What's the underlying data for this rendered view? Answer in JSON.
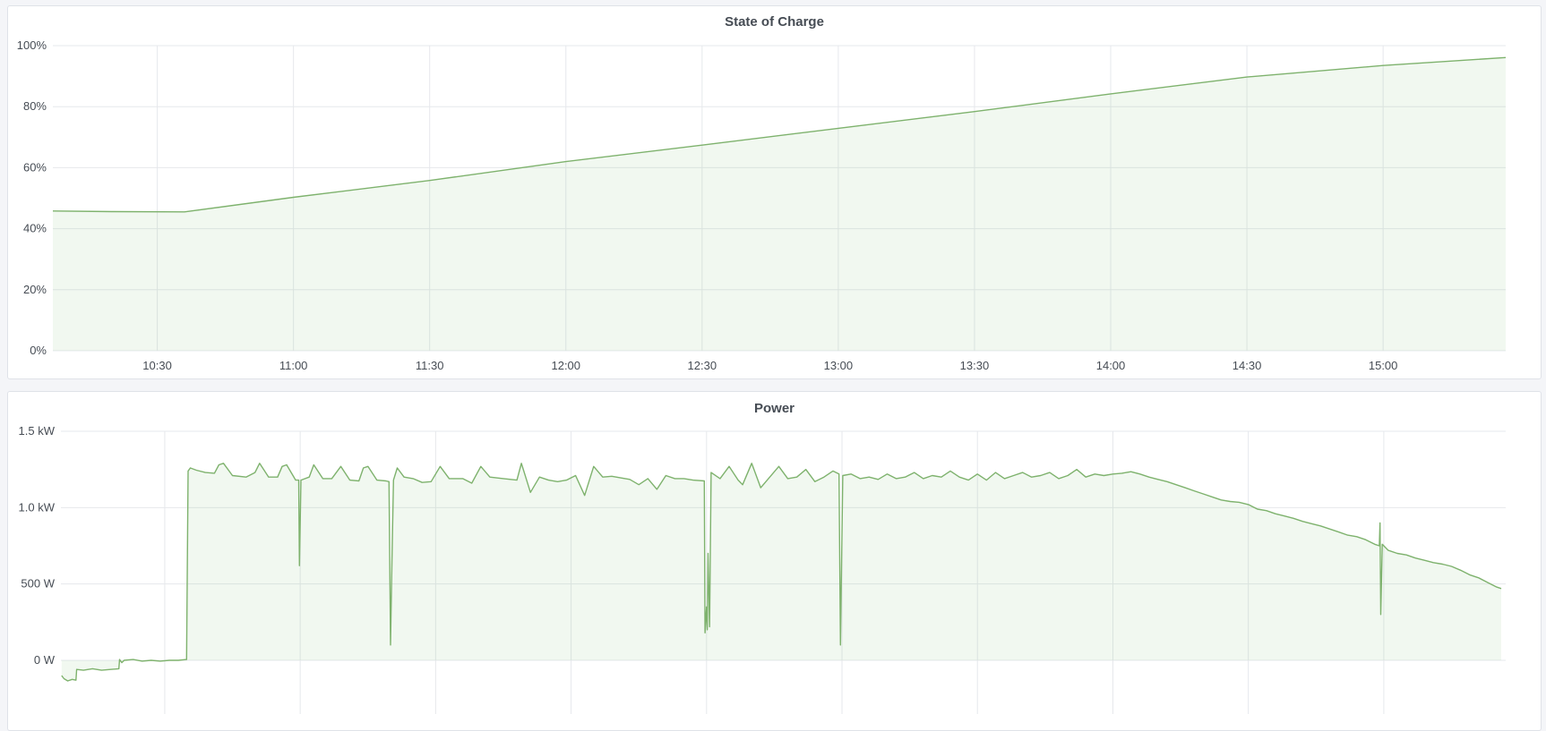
{
  "colors": {
    "line": "#7eb26d",
    "fill": "#73bf69",
    "grid": "#e6e8ec",
    "text": "#464c54"
  },
  "chart_data": [
    {
      "type": "area",
      "title": "State of Charge",
      "x_range": [
        "10:07:00",
        "15:27:00"
      ],
      "x_ticks": [
        "10:30",
        "11:00",
        "11:30",
        "12:00",
        "12:30",
        "13:00",
        "13:30",
        "14:00",
        "14:30",
        "15:00"
      ],
      "ylim": [
        0,
        100
      ],
      "y_ticks": [
        0,
        20,
        40,
        60,
        80,
        100
      ],
      "y_tick_labels": [
        "0%",
        "20%",
        "40%",
        "60%",
        "80%",
        "100%"
      ],
      "grid": true,
      "series": [
        {
          "points": [
            [
              "10:07:00",
              45.8
            ],
            [
              "10:20:00",
              45.6
            ],
            [
              "10:36:00",
              45.5
            ],
            [
              "11:00:00",
              50.3
            ],
            [
              "11:30:00",
              55.8
            ],
            [
              "12:00:00",
              62.0
            ],
            [
              "12:30:00",
              67.4
            ],
            [
              "13:00:00",
              72.9
            ],
            [
              "13:30:00",
              78.4
            ],
            [
              "14:00:00",
              84.2
            ],
            [
              "14:30:00",
              89.7
            ],
            [
              "15:00:00",
              93.5
            ],
            [
              "15:27:00",
              96.1
            ]
          ]
        }
      ]
    },
    {
      "type": "area",
      "title": "Power",
      "x_range": [
        "10:07:00",
        "15:27:00"
      ],
      "x_ticks": [
        "10:30",
        "11:00",
        "11:30",
        "12:00",
        "12:30",
        "13:00",
        "13:30",
        "14:00",
        "14:30",
        "15:00"
      ],
      "ylim": [
        -350,
        1500
      ],
      "y_ticks": [
        0,
        500,
        1000,
        1500
      ],
      "y_tick_labels": [
        "0 W",
        "500 W",
        "1.0 kW",
        "1.5 kW"
      ],
      "grid": true,
      "series": [
        {
          "points": [
            [
              "10:07:10",
              -100
            ],
            [
              "10:07:40",
              -120
            ],
            [
              "10:08:30",
              -135
            ],
            [
              "10:09:30",
              -125
            ],
            [
              "10:10:20",
              -130
            ],
            [
              "10:10:30",
              -60
            ],
            [
              "10:12:00",
              -65
            ],
            [
              "10:14:00",
              -55
            ],
            [
              "10:16:00",
              -65
            ],
            [
              "10:18:00",
              -60
            ],
            [
              "10:19:50",
              -55
            ],
            [
              "10:20:00",
              5
            ],
            [
              "10:20:30",
              -15
            ],
            [
              "10:21:00",
              0
            ],
            [
              "10:23:00",
              5
            ],
            [
              "10:25:00",
              -5
            ],
            [
              "10:27:00",
              0
            ],
            [
              "10:29:00",
              -5
            ],
            [
              "10:31:00",
              0
            ],
            [
              "10:33:00",
              0
            ],
            [
              "10:34:50",
              5
            ],
            [
              "10:35:10",
              1240
            ],
            [
              "10:35:40",
              1260
            ],
            [
              "10:37:00",
              1245
            ],
            [
              "10:39:00",
              1230
            ],
            [
              "10:41:00",
              1225
            ],
            [
              "10:42:00",
              1280
            ],
            [
              "10:43:00",
              1290
            ],
            [
              "10:45:00",
              1210
            ],
            [
              "10:48:00",
              1200
            ],
            [
              "10:50:00",
              1230
            ],
            [
              "10:51:00",
              1290
            ],
            [
              "10:53:00",
              1200
            ],
            [
              "10:55:00",
              1200
            ],
            [
              "10:56:00",
              1270
            ],
            [
              "10:57:00",
              1280
            ],
            [
              "10:59:00",
              1180
            ],
            [
              "10:59:40",
              1180
            ],
            [
              "10:59:50",
              620
            ],
            [
              "11:00:10",
              1180
            ],
            [
              "11:02:00",
              1200
            ],
            [
              "11:03:00",
              1280
            ],
            [
              "11:05:00",
              1190
            ],
            [
              "11:07:00",
              1190
            ],
            [
              "11:09:00",
              1270
            ],
            [
              "11:11:00",
              1180
            ],
            [
              "11:13:00",
              1175
            ],
            [
              "11:14:00",
              1260
            ],
            [
              "11:15:00",
              1270
            ],
            [
              "11:17:00",
              1180
            ],
            [
              "11:19:00",
              1175
            ],
            [
              "11:19:40",
              1170
            ],
            [
              "11:20:00",
              100
            ],
            [
              "11:20:20",
              660
            ],
            [
              "11:20:40",
              1180
            ],
            [
              "11:21:30",
              1260
            ],
            [
              "11:23:00",
              1200
            ],
            [
              "11:25:00",
              1190
            ],
            [
              "11:27:00",
              1165
            ],
            [
              "11:29:00",
              1170
            ],
            [
              "11:31:00",
              1270
            ],
            [
              "11:33:00",
              1190
            ],
            [
              "11:36:00",
              1190
            ],
            [
              "11:38:00",
              1160
            ],
            [
              "11:40:00",
              1270
            ],
            [
              "11:42:00",
              1200
            ],
            [
              "11:45:00",
              1190
            ],
            [
              "11:48:00",
              1180
            ],
            [
              "11:49:00",
              1290
            ],
            [
              "11:51:00",
              1100
            ],
            [
              "11:53:00",
              1200
            ],
            [
              "11:55:00",
              1180
            ],
            [
              "11:57:00",
              1170
            ],
            [
              "11:59:00",
              1180
            ],
            [
              "12:01:00",
              1210
            ],
            [
              "12:03:00",
              1080
            ],
            [
              "12:05:00",
              1270
            ],
            [
              "12:07:00",
              1200
            ],
            [
              "12:09:00",
              1205
            ],
            [
              "12:11:00",
              1195
            ],
            [
              "12:13:00",
              1185
            ],
            [
              "12:15:00",
              1150
            ],
            [
              "12:17:00",
              1190
            ],
            [
              "12:19:00",
              1120
            ],
            [
              "12:21:00",
              1210
            ],
            [
              "12:23:00",
              1190
            ],
            [
              "12:25:00",
              1190
            ],
            [
              "12:27:00",
              1180
            ],
            [
              "12:29:30",
              1175
            ],
            [
              "12:29:40",
              180
            ],
            [
              "12:30:00",
              350
            ],
            [
              "12:30:10",
              200
            ],
            [
              "12:30:20",
              700
            ],
            [
              "12:30:40",
              220
            ],
            [
              "12:31:00",
              1230
            ],
            [
              "12:33:00",
              1190
            ],
            [
              "12:35:00",
              1270
            ],
            [
              "12:37:00",
              1180
            ],
            [
              "12:38:00",
              1150
            ],
            [
              "12:40:00",
              1290
            ],
            [
              "12:42:00",
              1130
            ],
            [
              "12:44:00",
              1200
            ],
            [
              "12:46:00",
              1270
            ],
            [
              "12:48:00",
              1190
            ],
            [
              "12:50:00",
              1200
            ],
            [
              "12:52:00",
              1250
            ],
            [
              "12:54:00",
              1170
            ],
            [
              "12:56:00",
              1200
            ],
            [
              "12:58:00",
              1240
            ],
            [
              "12:59:20",
              1220
            ],
            [
              "12:59:40",
              100
            ],
            [
              "13:00:10",
              1210
            ],
            [
              "13:02:00",
              1220
            ],
            [
              "13:04:00",
              1190
            ],
            [
              "13:06:00",
              1200
            ],
            [
              "13:08:00",
              1185
            ],
            [
              "13:10:00",
              1220
            ],
            [
              "13:12:00",
              1190
            ],
            [
              "13:14:00",
              1200
            ],
            [
              "13:16:00",
              1230
            ],
            [
              "13:18:00",
              1190
            ],
            [
              "13:20:00",
              1210
            ],
            [
              "13:22:00",
              1200
            ],
            [
              "13:24:00",
              1240
            ],
            [
              "13:26:00",
              1200
            ],
            [
              "13:28:00",
              1180
            ],
            [
              "13:30:00",
              1220
            ],
            [
              "13:32:00",
              1180
            ],
            [
              "13:34:00",
              1230
            ],
            [
              "13:36:00",
              1190
            ],
            [
              "13:38:00",
              1210
            ],
            [
              "13:40:00",
              1230
            ],
            [
              "13:42:00",
              1200
            ],
            [
              "13:44:00",
              1210
            ],
            [
              "13:46:00",
              1230
            ],
            [
              "13:48:00",
              1190
            ],
            [
              "13:50:00",
              1210
            ],
            [
              "13:52:00",
              1250
            ],
            [
              "13:54:00",
              1200
            ],
            [
              "13:56:00",
              1220
            ],
            [
              "13:58:00",
              1210
            ],
            [
              "14:00:00",
              1220
            ],
            [
              "14:02:00",
              1225
            ],
            [
              "14:04:00",
              1235
            ],
            [
              "14:06:00",
              1220
            ],
            [
              "14:08:00",
              1200
            ],
            [
              "14:10:00",
              1185
            ],
            [
              "14:12:00",
              1170
            ],
            [
              "14:14:00",
              1150
            ],
            [
              "14:16:00",
              1130
            ],
            [
              "14:18:00",
              1110
            ],
            [
              "14:20:00",
              1090
            ],
            [
              "14:22:00",
              1070
            ],
            [
              "14:24:00",
              1050
            ],
            [
              "14:26:00",
              1040
            ],
            [
              "14:28:00",
              1035
            ],
            [
              "14:30:00",
              1020
            ],
            [
              "14:32:00",
              990
            ],
            [
              "14:34:00",
              980
            ],
            [
              "14:36:00",
              960
            ],
            [
              "14:38:00",
              945
            ],
            [
              "14:40:00",
              930
            ],
            [
              "14:42:00",
              910
            ],
            [
              "14:44:00",
              895
            ],
            [
              "14:46:00",
              880
            ],
            [
              "14:48:00",
              860
            ],
            [
              "14:50:00",
              840
            ],
            [
              "14:52:00",
              820
            ],
            [
              "14:54:00",
              810
            ],
            [
              "14:56:00",
              790
            ],
            [
              "14:58:00",
              760
            ],
            [
              "14:59:00",
              750
            ],
            [
              "14:59:10",
              900
            ],
            [
              "14:59:20",
              300
            ],
            [
              "14:59:40",
              760
            ],
            [
              "15:01:00",
              720
            ],
            [
              "15:03:00",
              700
            ],
            [
              "15:05:00",
              690
            ],
            [
              "15:07:00",
              670
            ],
            [
              "15:09:00",
              655
            ],
            [
              "15:11:00",
              640
            ],
            [
              "15:13:00",
              630
            ],
            [
              "15:15:00",
              615
            ],
            [
              "15:17:00",
              590
            ],
            [
              "15:19:00",
              560
            ],
            [
              "15:21:00",
              540
            ],
            [
              "15:23:00",
              510
            ],
            [
              "15:25:00",
              480
            ],
            [
              "15:26:00",
              470
            ]
          ]
        }
      ]
    }
  ]
}
